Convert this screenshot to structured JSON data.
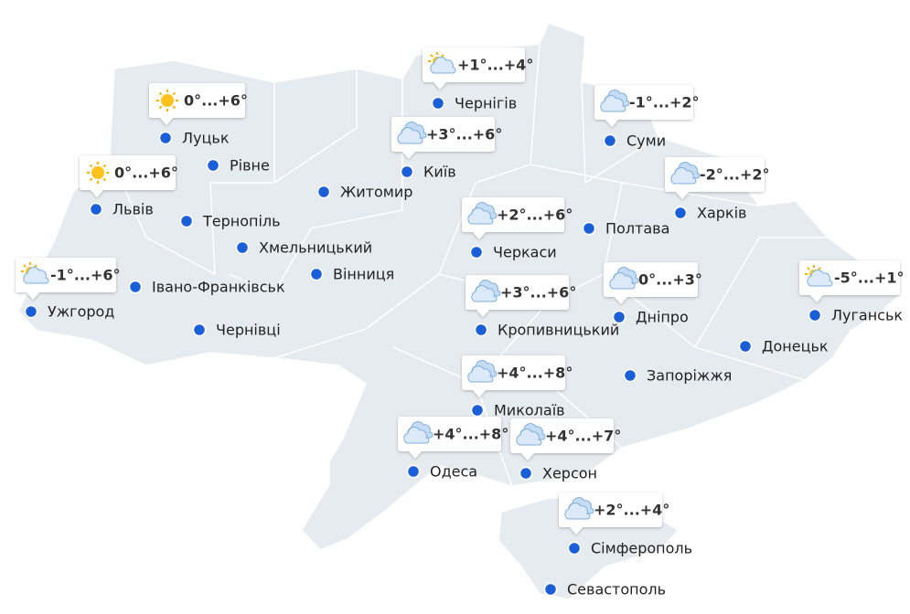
{
  "cities": [
    {
      "name": "Луцьк",
      "forecast": "0°...+6°"
    },
    {
      "name": "Рівне"
    },
    {
      "name": "Львів",
      "forecast": "0°...+6°"
    },
    {
      "name": "Тернопіль"
    },
    {
      "name": "Хмельницький"
    },
    {
      "name": "Житомир"
    },
    {
      "name": "Київ",
      "forecast": "+3°...+6°"
    },
    {
      "name": "Чернігів",
      "forecast": "+1°...+4°"
    },
    {
      "name": "Суми",
      "forecast": "-1°...+2°"
    },
    {
      "name": "Харків",
      "forecast": "-2°...+2°"
    },
    {
      "name": "Полтава"
    },
    {
      "name": "Черкаси",
      "forecast": "+2°...+6°"
    },
    {
      "name": "Вінниця"
    },
    {
      "name": "Ужгород",
      "forecast": "-1°...+6°"
    },
    {
      "name": "Івано-Франківськ"
    },
    {
      "name": "Чернівці"
    },
    {
      "name": "Кропивницький",
      "forecast": "+3°...+6°"
    },
    {
      "name": "Дніпро",
      "forecast": "0°...+3°"
    },
    {
      "name": "Луганськ",
      "forecast": "-5°...+1°"
    },
    {
      "name": "Донецьк"
    },
    {
      "name": "Запоріжжя"
    },
    {
      "name": "Миколаїв",
      "forecast": "+4°...+8°"
    },
    {
      "name": "Одеса",
      "forecast": "+4°...+8°"
    },
    {
      "name": "Херсон",
      "forecast": "+4°...+7°"
    },
    {
      "name": "Сімферополь",
      "forecast": "+2°...+4°"
    },
    {
      "name": "Севастополь"
    }
  ]
}
